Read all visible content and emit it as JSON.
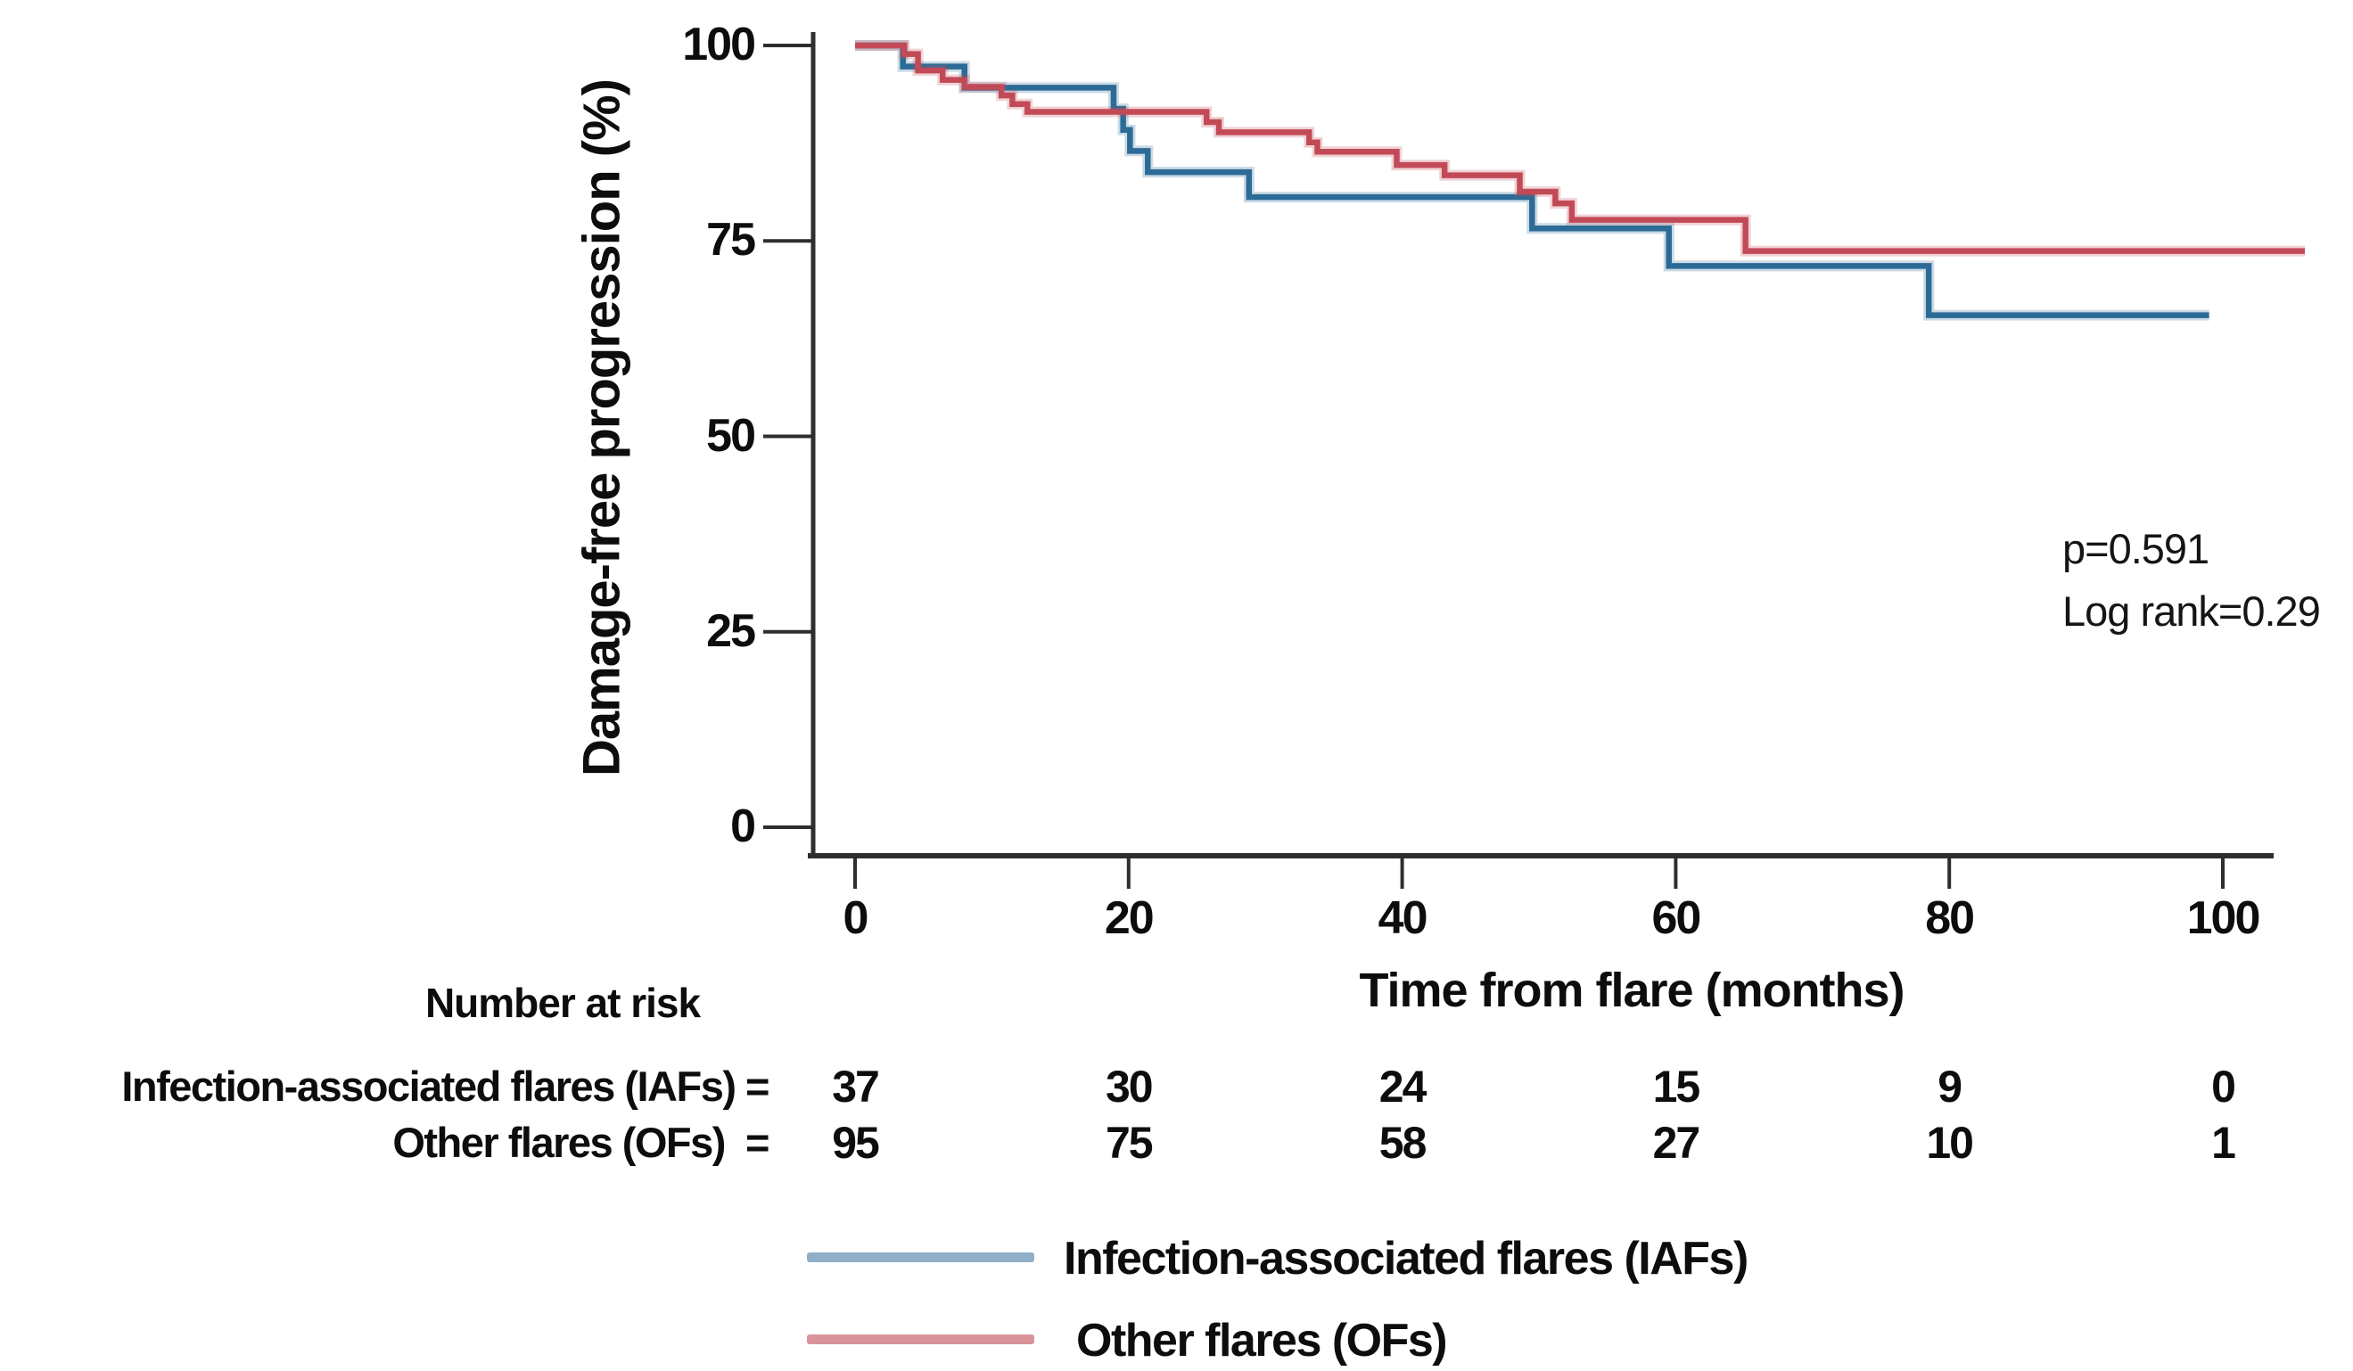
{
  "chart_data": {
    "type": "line",
    "subtype": "kaplan-meier-step",
    "title": "",
    "xlabel": "Time from flare (months)",
    "ylabel": "Damage-free progression (%)",
    "xlim": [
      0,
      107
    ],
    "ylim": [
      0,
      100
    ],
    "x_ticks": [
      0,
      20,
      40,
      60,
      80,
      100
    ],
    "y_ticks": [
      0,
      25,
      50,
      75,
      100
    ],
    "grid": false,
    "legend_position": "bottom-left",
    "annotations": [
      {
        "text": "p=0.591"
      },
      {
        "text": "Log rank=0.29"
      }
    ],
    "series": [
      {
        "name": "Infection-associated flares (IAFs)",
        "color": "#2c6b96",
        "legend_color": "#8fafc9",
        "end_time": 99,
        "steps": [
          [
            0,
            100
          ],
          [
            3.5,
            97.3
          ],
          [
            8,
            94.6
          ],
          [
            18.9,
            91.9
          ],
          [
            19.6,
            89.2
          ],
          [
            20.1,
            86.5
          ],
          [
            21.4,
            83.8
          ],
          [
            28.8,
            80.6
          ],
          [
            49.5,
            76.6
          ],
          [
            59.5,
            71.8
          ],
          [
            78.5,
            65.5
          ]
        ]
      },
      {
        "name": "Other flares (OFs)",
        "color": "#c24a57",
        "legend_color": "#d9939b",
        "end_time": 106,
        "steps": [
          [
            0,
            100
          ],
          [
            3.6,
            98.9
          ],
          [
            4.6,
            96.8
          ],
          [
            6.4,
            95.6
          ],
          [
            8,
            94.7
          ],
          [
            10.7,
            93.6
          ],
          [
            11.5,
            92.5
          ],
          [
            12.6,
            91.5
          ],
          [
            25.7,
            90.2
          ],
          [
            26.6,
            88.9
          ],
          [
            33.2,
            87.6
          ],
          [
            33.8,
            86.4
          ],
          [
            39.6,
            84.7
          ],
          [
            43.1,
            83.4
          ],
          [
            48.6,
            81.3
          ],
          [
            51.2,
            79.8
          ],
          [
            52.4,
            77.7
          ],
          [
            65.1,
            73.7
          ]
        ]
      }
    ]
  },
  "risk_table": {
    "header": "Number at risk",
    "times": [
      0,
      20,
      40,
      60,
      80,
      100
    ],
    "rows": [
      {
        "label": "Infection-associated flares (IAFs) =",
        "values": [
          37,
          30,
          24,
          15,
          9,
          0
        ]
      },
      {
        "label": "Other flares (OFs)  =",
        "values": [
          95,
          75,
          58,
          27,
          10,
          1
        ]
      }
    ]
  },
  "colors": {
    "axis": "#2e2e2e",
    "text": "#0d0d0d",
    "background": "#ffffff"
  }
}
